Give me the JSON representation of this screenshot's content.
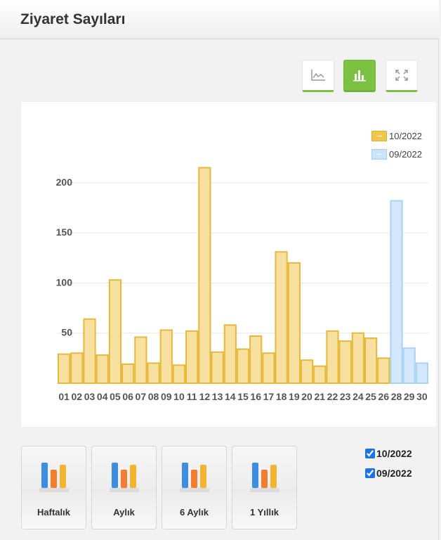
{
  "header": {
    "title": "Ziyaret Sayıları"
  },
  "toolbar": [
    {
      "icon": "line-chart-icon",
      "active": false
    },
    {
      "icon": "bar-chart-icon",
      "active": true
    },
    {
      "icon": "fullscreen-icon",
      "active": false
    }
  ],
  "colors": {
    "accent_green": "#7cc142",
    "series_current_fill": "#f8e1a0",
    "series_current_stroke": "#e6b93a",
    "series_previous_fill": "#d3e8fa",
    "series_previous_stroke": "#a9d2f5"
  },
  "chart_data": {
    "type": "bar",
    "title": "",
    "xlabel": "",
    "ylabel": "",
    "ylim": [
      0,
      235
    ],
    "yticks": [
      50,
      100,
      150,
      200
    ],
    "grid": true,
    "legend_position": "top-right",
    "categories": [
      "01",
      "02",
      "03",
      "04",
      "05",
      "06",
      "07",
      "08",
      "09",
      "10",
      "11",
      "12",
      "13",
      "14",
      "15",
      "16",
      "17",
      "18",
      "19",
      "20",
      "21",
      "22",
      "23",
      "24",
      "25",
      "26",
      "28",
      "29",
      "30"
    ],
    "series": [
      {
        "name": "10/2022",
        "values": [
          29,
          30,
          64,
          28,
          103,
          19,
          46,
          20,
          53,
          18,
          52,
          215,
          31,
          58,
          34,
          47,
          30,
          131,
          120,
          23,
          17,
          52,
          42,
          50,
          45,
          25,
          null,
          null,
          null
        ]
      },
      {
        "name": "09/2022",
        "values": [
          null,
          null,
          null,
          null,
          null,
          null,
          null,
          null,
          null,
          null,
          null,
          null,
          null,
          null,
          null,
          null,
          null,
          null,
          null,
          null,
          null,
          null,
          null,
          null,
          null,
          null,
          182,
          35,
          20
        ]
      }
    ]
  },
  "period_buttons": [
    {
      "label": "Haftalık"
    },
    {
      "label": "Aylık"
    },
    {
      "label": "6 Aylık"
    },
    {
      "label": "1 Yıllık"
    }
  ],
  "series_toggles": [
    {
      "label": "10/2022",
      "checked": true
    },
    {
      "label": "09/2022",
      "checked": true
    }
  ]
}
